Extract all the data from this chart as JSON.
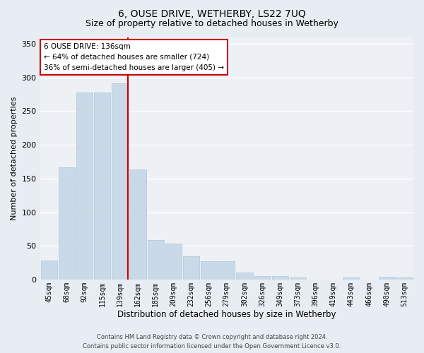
{
  "title": "6, OUSE DRIVE, WETHERBY, LS22 7UQ",
  "subtitle": "Size of property relative to detached houses in Wetherby",
  "xlabel": "Distribution of detached houses by size in Wetherby",
  "ylabel": "Number of detached properties",
  "categories": [
    "45sqm",
    "68sqm",
    "92sqm",
    "115sqm",
    "139sqm",
    "162sqm",
    "185sqm",
    "209sqm",
    "232sqm",
    "256sqm",
    "279sqm",
    "302sqm",
    "326sqm",
    "349sqm",
    "373sqm",
    "396sqm",
    "419sqm",
    "443sqm",
    "466sqm",
    "490sqm",
    "513sqm"
  ],
  "values": [
    28,
    167,
    278,
    278,
    291,
    163,
    59,
    53,
    34,
    27,
    27,
    10,
    5,
    5,
    3,
    0,
    0,
    3,
    0,
    4,
    3
  ],
  "bar_color": "#c9d9e8",
  "bar_edge_color": "#aec6d8",
  "highlight_index": 4,
  "highlight_line_color": "#cc0000",
  "annotation_text": "6 OUSE DRIVE: 136sqm\n← 64% of detached houses are smaller (724)\n36% of semi-detached houses are larger (405) →",
  "annotation_box_color": "#ffffff",
  "annotation_box_edge": "#cc0000",
  "ylim": [
    0,
    360
  ],
  "yticks": [
    0,
    50,
    100,
    150,
    200,
    250,
    300,
    350
  ],
  "background_color": "#e8edf3",
  "plot_bg_color": "#edf1f6",
  "grid_color": "#ffffff",
  "footer_line1": "Contains HM Land Registry data © Crown copyright and database right 2024.",
  "footer_line2": "Contains public sector information licensed under the Open Government Licence v3.0.",
  "title_fontsize": 10,
  "subtitle_fontsize": 9,
  "ylabel_fontsize": 8,
  "xlabel_fontsize": 8.5
}
